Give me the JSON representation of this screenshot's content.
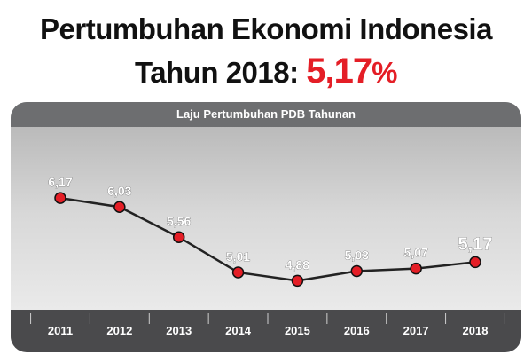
{
  "title": {
    "line1": "Pertumbuhan Ekonomi Indonesia",
    "line2_prefix": "Tahun 2018: ",
    "line2_highlight": "5,17",
    "line2_suffix": "%"
  },
  "chart_data": {
    "type": "line",
    "title": "Laju Pertumbuhan PDB Tahunan",
    "categories": [
      "2011",
      "2012",
      "2013",
      "2014",
      "2015",
      "2016",
      "2017",
      "2018"
    ],
    "values": [
      6.17,
      6.03,
      5.56,
      5.01,
      4.88,
      5.03,
      5.07,
      5.17
    ],
    "labels": [
      "6,17",
      "6,03",
      "5,56",
      "5,01",
      "4,88",
      "5,03",
      "5,07",
      "5,17"
    ],
    "ylim": [
      4.0,
      6.6
    ],
    "xlabel": "",
    "ylabel": "",
    "grid": false,
    "colors": {
      "line": "#222222",
      "marker": "#e41e26",
      "label": "#ffffff",
      "highlight": "#e41e26"
    }
  }
}
